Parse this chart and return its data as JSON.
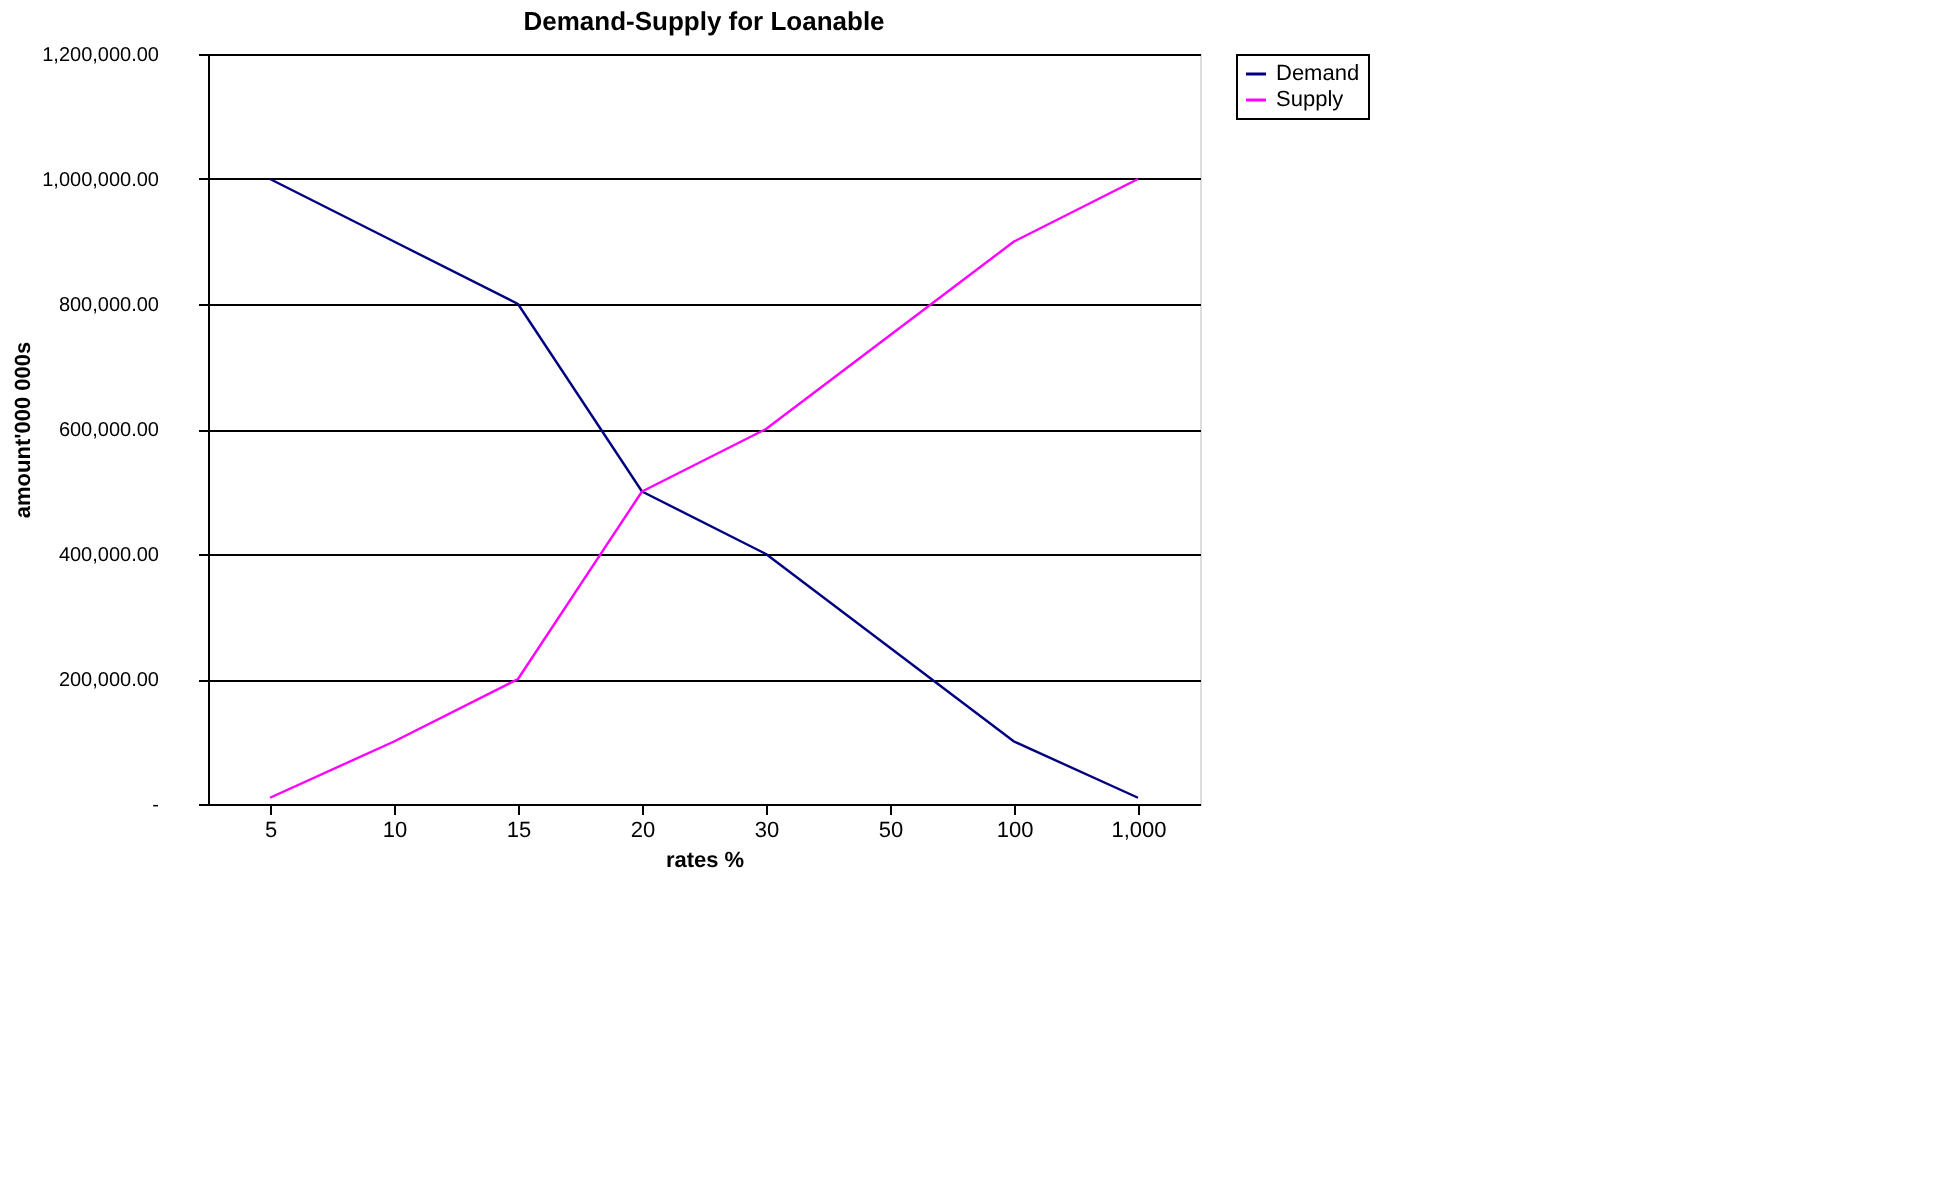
{
  "chart_data": {
    "type": "line",
    "title": "Demand-Supply for Loanable",
    "xlabel": "rates %",
    "ylabel": "amount'000 000s",
    "categories": [
      "5",
      "10",
      "15",
      "20",
      "30",
      "50",
      "100",
      "1,000"
    ],
    "series": [
      {
        "name": "Demand",
        "color": "#000080",
        "values": [
          1000000,
          900000,
          800000,
          500000,
          400000,
          250000,
          100000,
          10000
        ]
      },
      {
        "name": "Supply",
        "color": "#ff00ff",
        "values": [
          10000,
          100000,
          200000,
          500000,
          600000,
          750000,
          900000,
          1000000
        ]
      }
    ],
    "ylim": [
      0,
      1200000
    ],
    "yticks": [
      {
        "value": 0,
        "label": "-"
      },
      {
        "value": 200000,
        "label": "200,000.00"
      },
      {
        "value": 400000,
        "label": "400,000.00"
      },
      {
        "value": 600000,
        "label": "600,000.00"
      },
      {
        "value": 800000,
        "label": "800,000.00"
      },
      {
        "value": 1000000,
        "label": "1,000,000.00"
      },
      {
        "value": 1200000,
        "label": "1,200,000.00"
      }
    ],
    "grid": "y",
    "legend": "right",
    "marker": "none",
    "line_style": "solid"
  }
}
